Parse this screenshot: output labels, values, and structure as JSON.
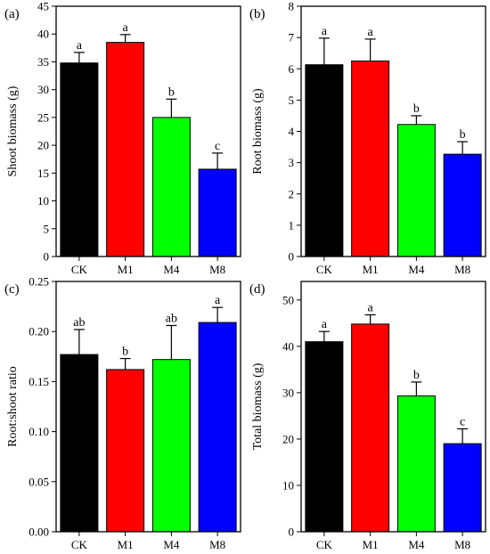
{
  "chart_data": [
    {
      "type": "bar",
      "panel_label": "(a)",
      "categories": [
        "CK",
        "M1",
        "M4",
        "M8"
      ],
      "values": [
        34.8,
        38.5,
        25.0,
        15.7
      ],
      "errors": [
        1.9,
        1.4,
        3.3,
        2.9
      ],
      "significance": [
        "a",
        "a",
        "b",
        "c"
      ],
      "colors": [
        "#000000",
        "#ff0000",
        "#00ff00",
        "#0000ff"
      ],
      "ylabel": "Shoot biomass (g)",
      "ylim": [
        0,
        45
      ],
      "yticks": [
        0,
        5,
        10,
        15,
        20,
        25,
        30,
        35,
        40,
        45
      ],
      "ytick_labels": [
        "0",
        "5",
        "10",
        "15",
        "20",
        "25",
        "30",
        "35",
        "40",
        "45"
      ],
      "grid": false
    },
    {
      "type": "bar",
      "panel_label": "(b)",
      "categories": [
        "CK",
        "M1",
        "M4",
        "M8"
      ],
      "values": [
        6.13,
        6.25,
        4.22,
        3.27
      ],
      "errors": [
        0.85,
        0.7,
        0.28,
        0.4
      ],
      "significance": [
        "a",
        "a",
        "b",
        "b"
      ],
      "colors": [
        "#000000",
        "#ff0000",
        "#00ff00",
        "#0000ff"
      ],
      "ylabel": "Root biomass (g)",
      "ylim": [
        0,
        8
      ],
      "yticks": [
        0,
        1,
        2,
        3,
        4,
        5,
        6,
        7,
        8
      ],
      "ytick_labels": [
        "0",
        "1",
        "2",
        "3",
        "4",
        "5",
        "6",
        "7",
        "8"
      ],
      "grid": false
    },
    {
      "type": "bar",
      "panel_label": "(c)",
      "categories": [
        "CK",
        "M1",
        "M4",
        "M8"
      ],
      "values": [
        0.177,
        0.162,
        0.172,
        0.209
      ],
      "errors": [
        0.025,
        0.011,
        0.034,
        0.015
      ],
      "significance": [
        "ab",
        "b",
        "ab",
        "a"
      ],
      "colors": [
        "#000000",
        "#ff0000",
        "#00ff00",
        "#0000ff"
      ],
      "ylabel": "Root:shoot ratio",
      "ylim": [
        0,
        0.25
      ],
      "yticks": [
        0,
        0.05,
        0.1,
        0.15,
        0.2,
        0.25
      ],
      "ytick_labels": [
        "0.00",
        "0.05",
        "0.10",
        "0.15",
        "0.20",
        "0.25"
      ],
      "grid": false
    },
    {
      "type": "bar",
      "panel_label": "(d)",
      "categories": [
        "CK",
        "M1",
        "M4",
        "M8"
      ],
      "values": [
        41.0,
        44.8,
        29.3,
        19.0
      ],
      "errors": [
        2.2,
        2.0,
        3.0,
        3.2
      ],
      "significance": [
        "a",
        "a",
        "b",
        "c"
      ],
      "colors": [
        "#000000",
        "#ff0000",
        "#00ff00",
        "#0000ff"
      ],
      "ylabel": "Total biomass (g)",
      "ylim": [
        0,
        54
      ],
      "yticks": [
        0,
        10,
        20,
        30,
        40,
        50
      ],
      "ytick_labels": [
        "0",
        "10",
        "20",
        "30",
        "40",
        "50"
      ],
      "grid": false
    }
  ]
}
